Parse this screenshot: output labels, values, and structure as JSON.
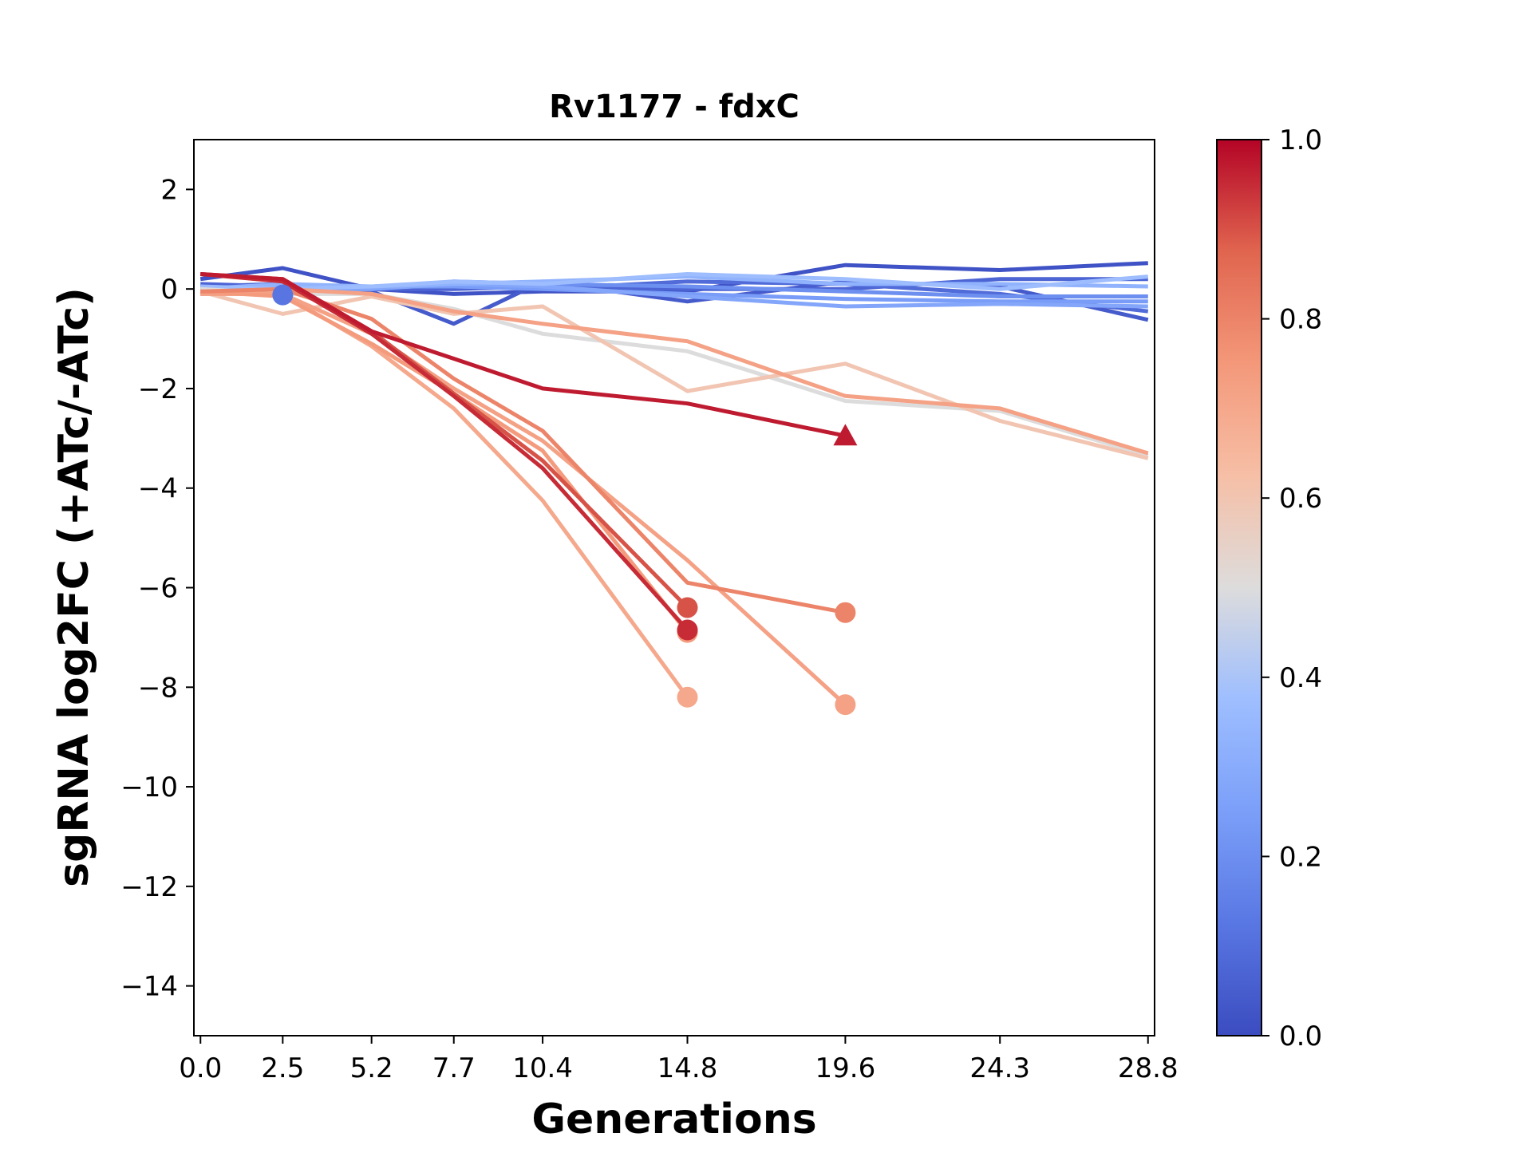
{
  "chart_data": {
    "type": "line",
    "title": "Rv1177 - fdxC",
    "xlabel": "Generations",
    "ylabel": "sgRNA log2FC (+ATc/-ATc)",
    "xlim": [
      -0.2,
      29.0
    ],
    "ylim": [
      -15,
      3
    ],
    "x_ticks": [
      0.0,
      2.5,
      5.2,
      7.7,
      10.4,
      14.8,
      19.6,
      24.3,
      28.8
    ],
    "x_tick_labels": [
      "0.0",
      "2.5",
      "5.2",
      "7.7",
      "10.4",
      "14.8",
      "19.6",
      "24.3",
      "28.8"
    ],
    "y_ticks": [
      2,
      0,
      -2,
      -4,
      -6,
      -8,
      -10,
      -12,
      -14
    ],
    "y_tick_labels": [
      "2",
      "0",
      "−2",
      "−4",
      "−6",
      "−8",
      "−10",
      "−12",
      "−14"
    ],
    "colorbar": {
      "range": [
        0.0,
        1.0
      ],
      "ticks": [
        0.0,
        0.2,
        0.4,
        0.6,
        0.8,
        1.0
      ],
      "tick_labels": [
        "0.0",
        "0.2",
        "0.4",
        "0.6",
        "0.8",
        "1.0"
      ],
      "colormap": "coolwarm"
    },
    "series": [
      {
        "c": 0.02,
        "x": [
          0.0,
          2.5,
          5.2,
          7.7,
          10.4,
          14.8,
          19.6,
          24.3,
          28.8
        ],
        "y": [
          0.2,
          0.42,
          0.0,
          -0.1,
          -0.05,
          -0.05,
          0.48,
          0.38,
          0.52
        ]
      },
      {
        "c": 0.04,
        "x": [
          0.0,
          2.5,
          5.2,
          7.7,
          10.4,
          14.8,
          19.6,
          24.3,
          28.8
        ],
        "y": [
          0.05,
          0.1,
          -0.05,
          -0.7,
          0.15,
          -0.25,
          0.15,
          0.05,
          -0.62
        ]
      },
      {
        "c": 0.07,
        "x": [
          0.0,
          2.5,
          5.2,
          7.7,
          10.4,
          14.8,
          19.6,
          24.3,
          28.8
        ],
        "y": [
          0.1,
          0.05,
          0.0,
          0.0,
          0.05,
          0.0,
          0.0,
          0.2,
          0.2
        ]
      },
      {
        "c": 0.09,
        "x": [
          0.0,
          2.5,
          5.2,
          7.7,
          10.4,
          14.8,
          19.6,
          24.3,
          28.8
        ],
        "y": [
          0.0,
          0.05,
          0.05,
          0.05,
          0.0,
          0.15,
          0.1,
          -0.1,
          -0.45
        ],
        "end_marker": null
      },
      {
        "c": 0.12,
        "x": [
          2.5
        ],
        "y": [
          -0.12
        ],
        "end_marker": "circle"
      },
      {
        "c": 0.2,
        "x": [
          0.0,
          2.5,
          5.2,
          7.7,
          10.4,
          14.8,
          19.6,
          24.3,
          28.8
        ],
        "y": [
          0.0,
          -0.05,
          0.0,
          0.15,
          0.1,
          0.05,
          -0.05,
          -0.15,
          -0.15
        ]
      },
      {
        "c": 0.24,
        "x": [
          0.0,
          2.5,
          5.2,
          7.7,
          10.4,
          14.8,
          19.6,
          24.3,
          28.8
        ],
        "y": [
          -0.05,
          0.05,
          0.05,
          0.05,
          0.0,
          -0.1,
          -0.2,
          -0.25,
          -0.25
        ]
      },
      {
        "c": 0.28,
        "x": [
          0.0,
          2.5,
          5.2,
          7.7,
          10.4,
          14.8,
          19.6,
          24.3,
          28.8
        ],
        "y": [
          0.0,
          0.0,
          0.0,
          0.1,
          0.05,
          -0.15,
          -0.35,
          -0.3,
          -0.35
        ]
      },
      {
        "c": 0.33,
        "x": [
          0.0,
          2.5,
          5.2,
          7.7,
          10.4,
          14.8,
          19.6,
          24.3,
          28.8
        ],
        "y": [
          0.0,
          0.1,
          0.05,
          0.1,
          0.15,
          0.25,
          0.1,
          0.1,
          0.05
        ]
      },
      {
        "c": 0.37,
        "x": [
          0.0,
          2.5,
          5.2,
          7.7,
          10.4,
          14.8,
          19.6,
          24.3,
          28.8
        ],
        "y": [
          0.05,
          0.0,
          0.05,
          0.15,
          0.1,
          0.3,
          0.2,
          0.0,
          0.25
        ]
      },
      {
        "c": 0.5,
        "x": [
          0.0,
          2.5,
          5.2,
          7.7,
          10.4,
          14.8,
          19.6,
          24.3,
          28.8
        ],
        "y": [
          0.0,
          -0.1,
          -0.1,
          -0.4,
          -0.9,
          -1.25,
          -2.25,
          -2.45,
          -3.35
        ]
      },
      {
        "c": 0.6,
        "x": [
          0.0,
          2.5,
          5.2,
          7.7,
          10.4,
          14.8,
          19.6,
          24.3,
          28.8
        ],
        "y": [
          -0.05,
          -0.5,
          -0.15,
          -0.5,
          -0.35,
          -2.05,
          -1.5,
          -2.65,
          -3.4
        ]
      },
      {
        "c": 0.72,
        "x": [
          0.0,
          2.5,
          5.2,
          7.7,
          10.4,
          14.8,
          19.6,
          24.3,
          28.8
        ],
        "y": [
          -0.1,
          0.0,
          -0.1,
          -0.45,
          -0.7,
          -1.05,
          -2.15,
          -2.4,
          -3.3
        ]
      },
      {
        "c": 0.7,
        "x": [
          0.0,
          2.5,
          5.2,
          7.7,
          10.4,
          14.8
        ],
        "y": [
          -0.1,
          -0.1,
          -1.15,
          -2.4,
          -4.25,
          -8.2
        ],
        "end_marker": "circle"
      },
      {
        "c": 0.72,
        "x": [
          0.0,
          2.5,
          5.2,
          7.7,
          10.4,
          14.8,
          19.6
        ],
        "y": [
          -0.1,
          -0.1,
          -0.9,
          -2.0,
          -3.05,
          -5.45,
          -8.35
        ],
        "end_marker": "circle"
      },
      {
        "c": 0.74,
        "x": [
          0.0,
          2.5,
          5.2,
          7.7,
          10.4,
          14.8
        ],
        "y": [
          -0.05,
          -0.15,
          -1.1,
          -2.1,
          -3.25,
          -6.9
        ],
        "end_marker": "circle"
      },
      {
        "c": 0.8,
        "x": [
          0.0,
          2.5,
          5.2,
          7.7,
          10.4,
          14.8,
          19.6
        ],
        "y": [
          -0.05,
          0.0,
          -0.6,
          -1.8,
          -2.85,
          -5.9,
          -6.5
        ],
        "end_marker": "circle"
      },
      {
        "c": 0.9,
        "x": [
          0.0,
          2.5,
          5.2,
          7.7,
          10.4,
          14.8
        ],
        "y": [
          0.3,
          0.2,
          -0.85,
          -2.1,
          -3.45,
          -6.4
        ],
        "end_marker": "circle"
      },
      {
        "c": 0.95,
        "x": [
          0.0,
          2.5,
          5.2,
          7.7,
          10.4,
          14.8
        ],
        "y": [
          0.3,
          0.15,
          -0.9,
          -2.15,
          -3.6,
          -6.85
        ],
        "end_marker": "circle"
      },
      {
        "c": 0.97,
        "x": [
          0.0,
          2.5,
          5.2,
          7.7,
          10.4,
          14.8,
          19.6
        ],
        "y": [
          0.3,
          0.2,
          -0.85,
          -1.4,
          -2.0,
          -2.3,
          -2.95
        ],
        "end_marker": "triangle"
      }
    ]
  }
}
